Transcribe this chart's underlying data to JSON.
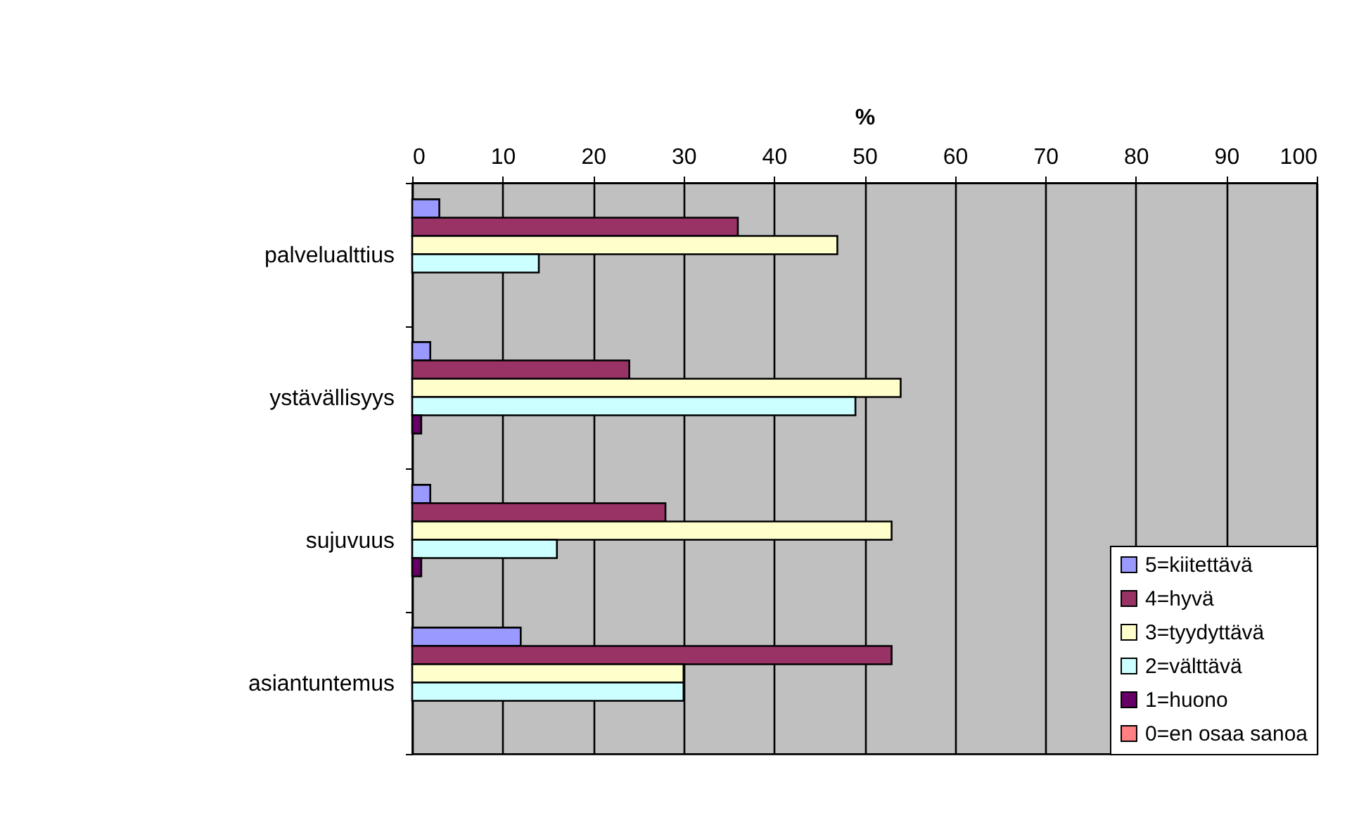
{
  "chart_data": {
    "type": "bar",
    "orientation": "horizontal",
    "xlabel": "%",
    "categories": [
      "palvelualttius",
      "ystävällisyys",
      "sujuvuus",
      "asiantuntemus"
    ],
    "series": [
      {
        "name": "5=kiitettävä",
        "color": "#9999ff",
        "values": [
          3,
          2,
          2,
          12
        ]
      },
      {
        "name": "4=hyvä",
        "color": "#993366",
        "values": [
          36,
          24,
          28,
          53
        ]
      },
      {
        "name": "3=tyydyttävä",
        "color": "#ffffcc",
        "values": [
          47,
          54,
          53,
          30
        ]
      },
      {
        "name": "2=välttävä",
        "color": "#ccffff",
        "values": [
          14,
          49,
          16,
          30
        ]
      },
      {
        "name": "1=huono",
        "color": "#660066",
        "values": [
          0,
          1,
          1,
          0
        ]
      },
      {
        "name": "0=en osaa sanoa",
        "color": "#ff8080",
        "values": [
          0,
          0,
          0,
          0
        ]
      }
    ],
    "xlim": [
      0,
      100
    ],
    "xticks": [
      0,
      10,
      20,
      30,
      40,
      50,
      60,
      70,
      80,
      90,
      100
    ],
    "grid": "x",
    "legend": "bottom right"
  }
}
